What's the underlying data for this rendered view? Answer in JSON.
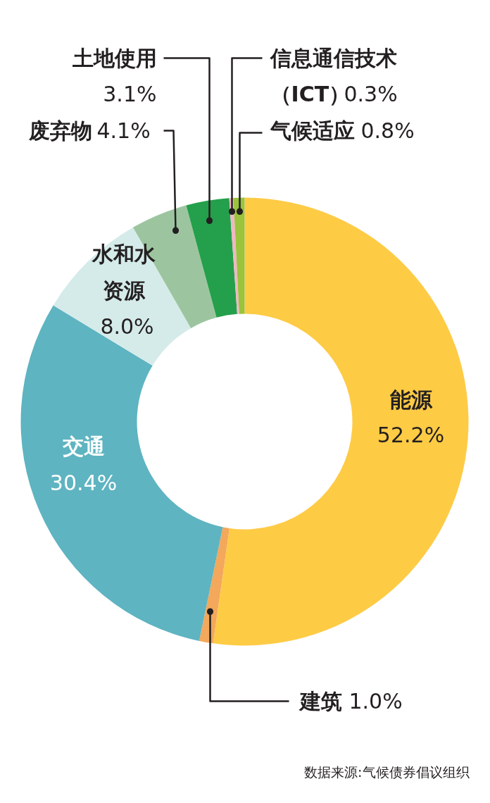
{
  "chart_data": {
    "type": "donut",
    "categories": [
      "能源",
      "建筑",
      "交通",
      "水和水资源",
      "废弃物",
      "土地使用",
      "信息通信技术（ICT）",
      "气候适应"
    ],
    "values": [
      52.2,
      1.0,
      30.4,
      8.0,
      4.1,
      3.1,
      0.3,
      0.8
    ],
    "colors": [
      "#fecb45",
      "#f3a85b",
      "#5eb4c1",
      "#d5ebea",
      "#9cc59f",
      "#249f4b",
      "#f1b6c4",
      "#9ac43b"
    ],
    "value_labels": [
      "52.2%",
      "1.0%",
      "30.4%",
      "8.0%",
      "4.1%",
      "3.1%",
      "0.3%",
      "0.8%"
    ],
    "annotations": [
      "数据来源:气候债券倡议组织"
    ]
  }
}
